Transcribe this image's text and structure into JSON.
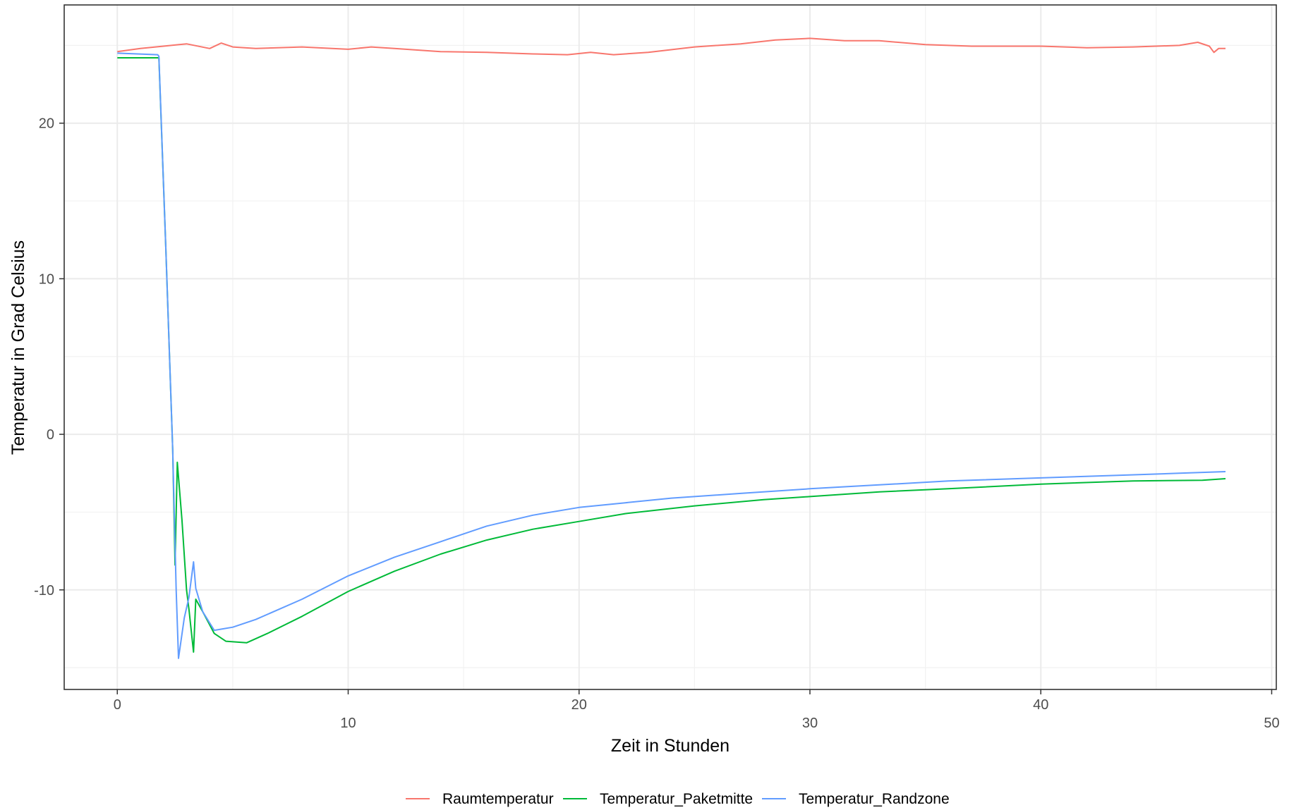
{
  "chart_data": {
    "type": "line",
    "title": "",
    "xlabel": "Zeit in Stunden",
    "ylabel": "Temperatur in Grad Celsius",
    "xlim": [
      -2.3,
      50.2
    ],
    "ylim": [
      -16.4,
      27.6
    ],
    "x_ticks": [
      0,
      10,
      20,
      30,
      40,
      50
    ],
    "x_tick_labels": [
      "0",
      "10",
      "20",
      "30",
      "40",
      "50"
    ],
    "y_ticks": [
      -10,
      0,
      10,
      20
    ],
    "y_tick_labels": [
      "-10",
      "0",
      "10",
      "20"
    ],
    "grid": true,
    "legend_position": "bottom",
    "series": [
      {
        "name": "Raumtemperatur",
        "color": "#F8766D",
        "points": [
          [
            0,
            24.6
          ],
          [
            1,
            24.8
          ],
          [
            2,
            24.95
          ],
          [
            3,
            25.1
          ],
          [
            4,
            24.8
          ],
          [
            4.5,
            25.15
          ],
          [
            5,
            24.9
          ],
          [
            6,
            24.8
          ],
          [
            8,
            24.9
          ],
          [
            10,
            24.75
          ],
          [
            11,
            24.9
          ],
          [
            12,
            24.8
          ],
          [
            14,
            24.6
          ],
          [
            16,
            24.55
          ],
          [
            18,
            24.45
          ],
          [
            19.5,
            24.4
          ],
          [
            20.5,
            24.55
          ],
          [
            21.5,
            24.4
          ],
          [
            23,
            24.55
          ],
          [
            25,
            24.9
          ],
          [
            27,
            25.1
          ],
          [
            28.5,
            25.35
          ],
          [
            30,
            25.45
          ],
          [
            31.5,
            25.3
          ],
          [
            33,
            25.3
          ],
          [
            35,
            25.05
          ],
          [
            37,
            24.95
          ],
          [
            40,
            24.95
          ],
          [
            42,
            24.85
          ],
          [
            44,
            24.9
          ],
          [
            46,
            25.0
          ],
          [
            46.8,
            25.2
          ],
          [
            47.3,
            24.95
          ],
          [
            47.5,
            24.55
          ],
          [
            47.7,
            24.8
          ],
          [
            48,
            24.8
          ]
        ]
      },
      {
        "name": "Temperatur_Paketmitte",
        "color": "#00BA38",
        "points": [
          [
            0,
            24.2
          ],
          [
            1.75,
            24.2
          ],
          [
            1.8,
            24.2
          ],
          [
            2.1,
            12.0
          ],
          [
            2.4,
            -1.0
          ],
          [
            2.5,
            -8.4
          ],
          [
            2.6,
            -1.8
          ],
          [
            2.8,
            -5.5
          ],
          [
            3.0,
            -10.0
          ],
          [
            3.1,
            -11.2
          ],
          [
            3.3,
            -14.0
          ],
          [
            3.4,
            -10.6
          ],
          [
            3.7,
            -11.4
          ],
          [
            4.2,
            -12.8
          ],
          [
            4.7,
            -13.3
          ],
          [
            5.6,
            -13.4
          ],
          [
            6.5,
            -12.8
          ],
          [
            8,
            -11.7
          ],
          [
            10,
            -10.1
          ],
          [
            12,
            -8.8
          ],
          [
            14,
            -7.7
          ],
          [
            16,
            -6.8
          ],
          [
            18,
            -6.1
          ],
          [
            20,
            -5.6
          ],
          [
            22,
            -5.1
          ],
          [
            25,
            -4.6
          ],
          [
            28,
            -4.2
          ],
          [
            30,
            -4.0
          ],
          [
            33,
            -3.7
          ],
          [
            36,
            -3.5
          ],
          [
            40,
            -3.2
          ],
          [
            44,
            -3.0
          ],
          [
            47,
            -2.95
          ],
          [
            48,
            -2.85
          ]
        ]
      },
      {
        "name": "Temperatur_Randzone",
        "color": "#619CFF",
        "points": [
          [
            0,
            24.5
          ],
          [
            1.75,
            24.4
          ],
          [
            1.8,
            24.3
          ],
          [
            2.1,
            12.0
          ],
          [
            2.4,
            -1.0
          ],
          [
            2.55,
            -10.0
          ],
          [
            2.65,
            -14.4
          ],
          [
            2.9,
            -11.8
          ],
          [
            3.1,
            -10.5
          ],
          [
            3.3,
            -8.2
          ],
          [
            3.4,
            -9.9
          ],
          [
            3.7,
            -11.4
          ],
          [
            4.2,
            -12.6
          ],
          [
            5,
            -12.4
          ],
          [
            6,
            -11.9
          ],
          [
            8,
            -10.6
          ],
          [
            10,
            -9.1
          ],
          [
            12,
            -7.9
          ],
          [
            14,
            -6.9
          ],
          [
            16,
            -5.9
          ],
          [
            18,
            -5.2
          ],
          [
            20,
            -4.7
          ],
          [
            22,
            -4.4
          ],
          [
            24,
            -4.1
          ],
          [
            27,
            -3.8
          ],
          [
            30,
            -3.5
          ],
          [
            33,
            -3.25
          ],
          [
            36,
            -3.0
          ],
          [
            40,
            -2.8
          ],
          [
            43,
            -2.65
          ],
          [
            46,
            -2.5
          ],
          [
            48,
            -2.4
          ]
        ]
      }
    ]
  }
}
